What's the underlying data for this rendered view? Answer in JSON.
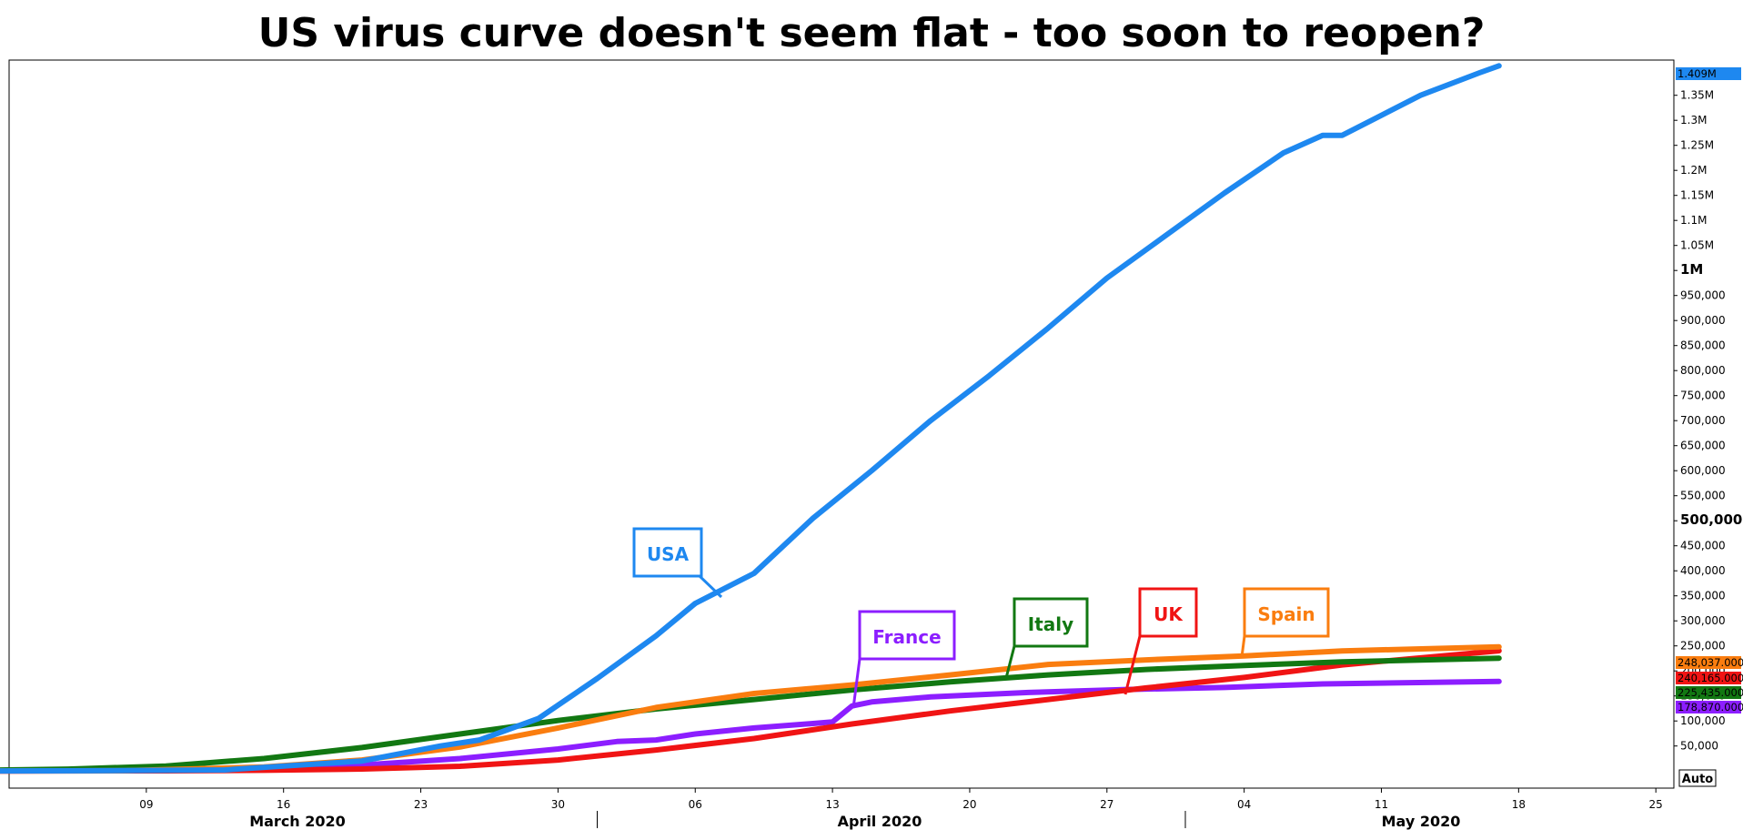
{
  "chart_data": {
    "type": "line",
    "title": "US virus curve doesn't seem flat - too soon to reopen?",
    "x_axis": {
      "day_ticks": [
        "09",
        "16",
        "23",
        "30",
        "06",
        "13",
        "20",
        "27",
        "04",
        "11",
        "18",
        "25"
      ],
      "month_labels": [
        "March 2020",
        "April 2020",
        "May 2020"
      ]
    },
    "y_axis": {
      "ticks": [
        "50,000",
        "100,000",
        "150,000",
        "200,000",
        "250,000",
        "300,000",
        "350,000",
        "400,000",
        "450,000",
        "500,000",
        "550,000",
        "600,000",
        "650,000",
        "700,000",
        "750,000",
        "800,000",
        "850,000",
        "900,000",
        "950,000",
        "1M",
        "1.05M",
        "1.1M",
        "1.15M",
        "1.2M",
        "1.25M",
        "1.3M",
        "1.35M"
      ],
      "range": [
        0,
        1420000
      ],
      "auto_label": "Auto"
    },
    "series": [
      {
        "name": "USA",
        "color": "#1e88f0",
        "last_value_label": "1.409M",
        "x": [
          "2020-03-01",
          "2020-03-06",
          "2020-03-13",
          "2020-03-20",
          "2020-03-24",
          "2020-03-26",
          "2020-03-29",
          "2020-04-01",
          "2020-04-04",
          "2020-04-06",
          "2020-04-09",
          "2020-04-12",
          "2020-04-15",
          "2020-04-18",
          "2020-04-21",
          "2020-04-24",
          "2020-04-27",
          "2020-04-30",
          "2020-05-03",
          "2020-05-06",
          "2020-05-08",
          "2020-05-09",
          "2020-05-10",
          "2020-05-13",
          "2020-05-16",
          "2020-05-17"
        ],
        "values": [
          0,
          500,
          2200,
          20000,
          50000,
          62000,
          105000,
          185000,
          270000,
          335000,
          395000,
          505000,
          600000,
          700000,
          790000,
          885000,
          985000,
          1070000,
          1155000,
          1235000,
          1270000,
          1270000,
          1290000,
          1350000,
          1395000,
          1409000
        ]
      },
      {
        "name": "Spain",
        "color": "#fa7d0f",
        "last_value_label": "248,037.000",
        "x": [
          "2020-03-01",
          "2020-03-08",
          "2020-03-15",
          "2020-03-20",
          "2020-03-25",
          "2020-03-30",
          "2020-04-04",
          "2020-04-09",
          "2020-04-14",
          "2020-04-19",
          "2020-04-24",
          "2020-04-29",
          "2020-05-04",
          "2020-05-09",
          "2020-05-17"
        ],
        "values": [
          0,
          700,
          8000,
          22000,
          48000,
          86000,
          127000,
          155000,
          172000,
          192000,
          213000,
          222000,
          230000,
          240000,
          248037
        ]
      },
      {
        "name": "Italy",
        "color": "#127812",
        "last_value_label": "225,435.000",
        "x": [
          "2020-03-01",
          "2020-03-05",
          "2020-03-10",
          "2020-03-15",
          "2020-03-20",
          "2020-03-25",
          "2020-03-30",
          "2020-04-04",
          "2020-04-09",
          "2020-04-14",
          "2020-04-19",
          "2020-04-24",
          "2020-04-29",
          "2020-05-04",
          "2020-05-09",
          "2020-05-17"
        ],
        "values": [
          1700,
          3800,
          10000,
          25000,
          47000,
          74000,
          101000,
          124000,
          143000,
          162000,
          178000,
          192000,
          203000,
          211000,
          218000,
          225435
        ]
      },
      {
        "name": "UK",
        "color": "#f01414",
        "last_value_label": "240,165.000",
        "x": [
          "2020-03-01",
          "2020-03-10",
          "2020-03-15",
          "2020-03-20",
          "2020-03-25",
          "2020-03-30",
          "2020-04-04",
          "2020-04-09",
          "2020-04-14",
          "2020-04-19",
          "2020-04-24",
          "2020-04-29",
          "2020-05-04",
          "2020-05-09",
          "2020-05-17"
        ],
        "values": [
          0,
          300,
          1400,
          4000,
          9500,
          22000,
          42000,
          65000,
          94000,
          120000,
          143000,
          166000,
          187000,
          212000,
          240165
        ]
      },
      {
        "name": "France",
        "color": "#8c1eff",
        "last_value_label": "178,870.000",
        "x": [
          "2020-03-01",
          "2020-03-08",
          "2020-03-13",
          "2020-03-20",
          "2020-03-25",
          "2020-03-30",
          "2020-04-02",
          "2020-04-04",
          "2020-04-06",
          "2020-04-09",
          "2020-04-12",
          "2020-04-13",
          "2020-04-14",
          "2020-04-15",
          "2020-04-18",
          "2020-04-23",
          "2020-04-28",
          "2020-05-03",
          "2020-05-08",
          "2020-05-17"
        ],
        "values": [
          0,
          900,
          3700,
          12000,
          25000,
          44000,
          59000,
          62000,
          74000,
          86000,
          95000,
          98000,
          130000,
          138000,
          148000,
          157000,
          163000,
          167000,
          174000,
          178870
        ]
      }
    ],
    "annotations": [
      "USA",
      "France",
      "Italy",
      "UK",
      "Spain"
    ]
  }
}
